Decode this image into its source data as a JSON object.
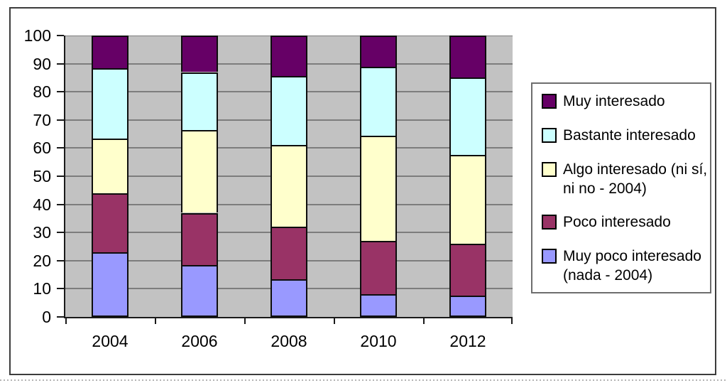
{
  "figure": {
    "kind": "excel-style stacked column chart",
    "background": "#ffffff"
  },
  "chart_data": {
    "type": "bar",
    "stacked": true,
    "title": "",
    "xlabel": "",
    "ylabel": "",
    "categories": [
      "2004",
      "2006",
      "2008",
      "2010",
      "2012"
    ],
    "series": [
      {
        "name": "Muy poco interesado (nada - 2004)",
        "color": "#9999FF",
        "values": [
          23,
          18.5,
          13.5,
          8,
          7.5
        ]
      },
      {
        "name": "Poco interesado",
        "color": "#993366",
        "values": [
          21,
          18.5,
          18.5,
          19,
          18.5
        ]
      },
      {
        "name": "Algo interesado (ni sí, ni no - 2004)",
        "color": "#FFFFCC",
        "values": [
          19.5,
          29.5,
          29,
          37.5,
          31.5
        ]
      },
      {
        "name": "Bastante interesado",
        "color": "#CCFFFF",
        "values": [
          25,
          20.5,
          24.5,
          24.5,
          27.5
        ]
      },
      {
        "name": "Muy interesado",
        "color": "#660066",
        "values": [
          11.5,
          13,
          14.5,
          11,
          15
        ]
      }
    ],
    "ylim": [
      0,
      100
    ],
    "yticks": [
      0,
      10,
      20,
      30,
      40,
      50,
      60,
      70,
      80,
      90,
      100
    ],
    "grid": true,
    "legend_position": "right"
  },
  "legend": {
    "items": [
      {
        "label": "Muy interesado",
        "lines": [
          "Muy interesado"
        ],
        "color": "#660066"
      },
      {
        "label": "Bastante interesado",
        "lines": [
          "Bastante interesado"
        ],
        "color": "#CCFFFF"
      },
      {
        "label": "Algo interesado (ni sí, ni no - 2004)",
        "lines": [
          "Algo interesado (ni sí,",
          "ni no - 2004)"
        ],
        "color": "#FFFFCC"
      },
      {
        "label": "Poco interesado",
        "lines": [
          "Poco interesado"
        ],
        "color": "#993366"
      },
      {
        "label": "Muy poco interesado (nada - 2004)",
        "lines": [
          "Muy poco interesado",
          "(nada - 2004)"
        ],
        "color": "#9999FF"
      }
    ]
  },
  "colors": {
    "plot_bg": "#C2C2C2",
    "gridline": "#7D7D7D",
    "axis": "#1A1A1A",
    "bar_border": "#0D0D0D",
    "frame_border": "#3C3C3C",
    "legend_border": "#6E6E6E",
    "text": "#000000"
  }
}
